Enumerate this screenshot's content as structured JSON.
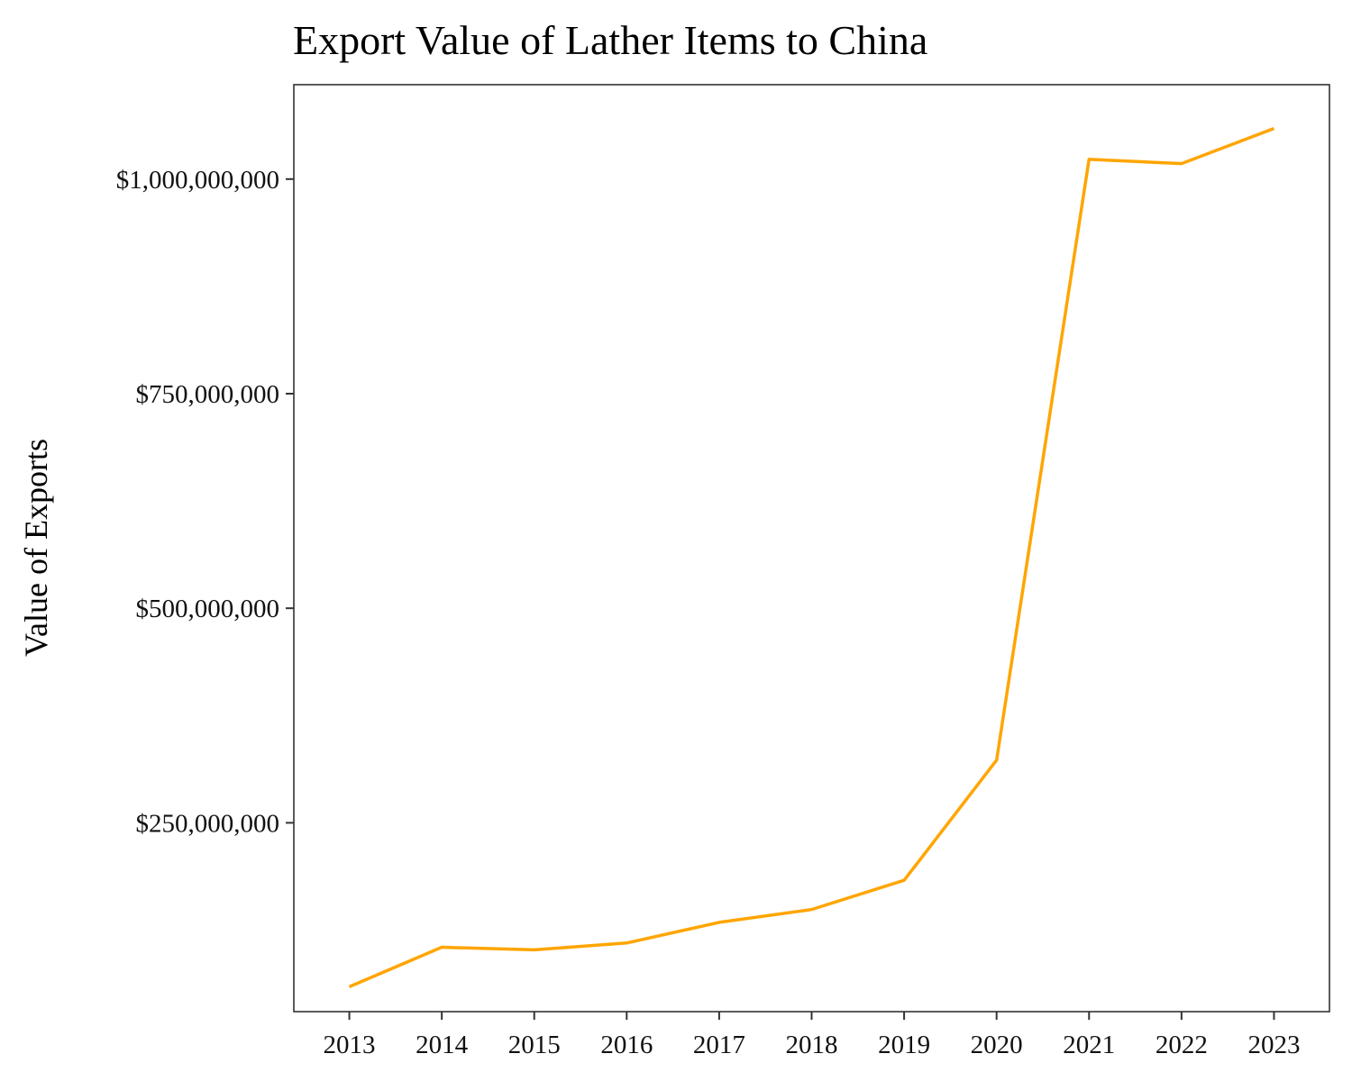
{
  "chart_data": {
    "type": "line",
    "title": "Export Value of Lather Items to China",
    "xlabel": "",
    "ylabel": "Value of Exports",
    "x": [
      2013,
      2014,
      2015,
      2016,
      2017,
      2018,
      2019,
      2020,
      2021,
      2022,
      2023
    ],
    "x_tick_labels": [
      "2013",
      "2014",
      "2015",
      "2016",
      "2017",
      "2018",
      "2019",
      "2020",
      "2021",
      "2022",
      "2023"
    ],
    "y_ticks": [
      250000000,
      500000000,
      750000000,
      1000000000
    ],
    "y_tick_labels": [
      "$250,000,000",
      "$500,000,000",
      "$750,000,000",
      "$1,000,000,000"
    ],
    "ylim": [
      30000000,
      1110000000
    ],
    "xlim": [
      2012.4,
      2023.6
    ],
    "grid": false,
    "legend": "none",
    "series": [
      {
        "color": "#FFA500",
        "values": [
          59000000,
          105000000,
          102000000,
          110000000,
          134000000,
          149000000,
          183000000,
          323000000,
          1023000000,
          1018000000,
          1059000000
        ]
      }
    ]
  }
}
